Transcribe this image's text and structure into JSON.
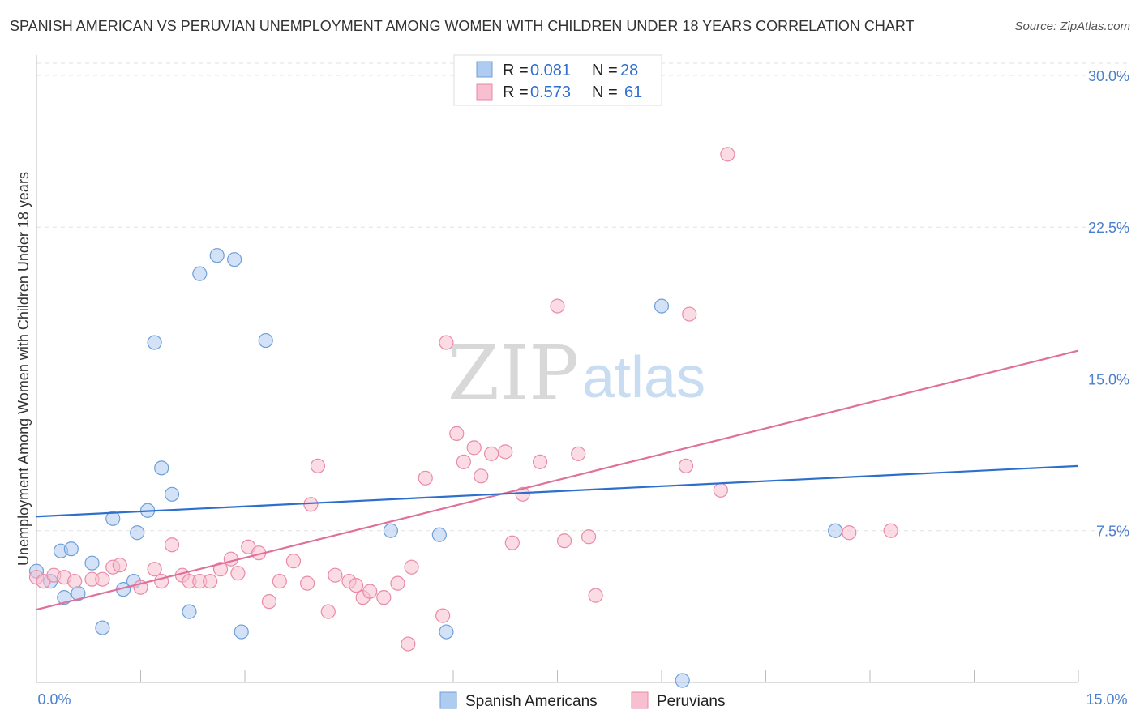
{
  "header": {
    "title": "SPANISH AMERICAN VS PERUVIAN UNEMPLOYMENT AMONG WOMEN WITH CHILDREN UNDER 18 YEARS CORRELATION CHART",
    "source": "Source: ZipAtlas.com"
  },
  "watermark": {
    "zip": "ZIP",
    "atlas": "atlas"
  },
  "legend": {
    "r_label": "R =",
    "n_label": "N =",
    "rows": [
      {
        "r": "0.081",
        "n": "28"
      },
      {
        "r": "0.573",
        "n": "61"
      }
    ]
  },
  "colors": {
    "blue_fill": "#aecbf0",
    "blue_stroke": "#6f9fd8",
    "blue_line": "#2d6fcc",
    "pink_fill": "#f7bfcf",
    "pink_stroke": "#e98aa8",
    "pink_line": "#e0709a"
  },
  "chart_data": {
    "type": "scatter",
    "title": "SPANISH AMERICAN VS PERUVIAN UNEMPLOYMENT AMONG WOMEN WITH CHILDREN UNDER 18 YEARS CORRELATION CHART",
    "xlabel": "",
    "ylabel": "Unemployment Among Women with Children Under 18 years",
    "xlim": [
      0,
      15
    ],
    "ylim": [
      0,
      31
    ],
    "x_tick_labels": [
      "0.0%",
      "15.0%"
    ],
    "y_ticks": [
      7.5,
      15.0,
      22.5,
      30.0
    ],
    "y_tick_labels": [
      "7.5%",
      "15.0%",
      "22.5%",
      "30.0%"
    ],
    "grid": "horizontal dashed",
    "series": [
      {
        "name": "Spanish Americans",
        "r": 0.081,
        "n": 28,
        "trend": {
          "x": [
            0,
            15
          ],
          "y": [
            8.2,
            10.7
          ]
        },
        "points": [
          [
            0.0,
            5.5
          ],
          [
            0.2,
            5.0
          ],
          [
            0.35,
            6.5
          ],
          [
            0.4,
            4.2
          ],
          [
            0.5,
            6.6
          ],
          [
            0.6,
            4.4
          ],
          [
            0.8,
            5.9
          ],
          [
            0.95,
            2.7
          ],
          [
            1.1,
            8.1
          ],
          [
            1.25,
            4.6
          ],
          [
            1.4,
            5.0
          ],
          [
            1.45,
            7.4
          ],
          [
            1.6,
            8.5
          ],
          [
            1.7,
            16.8
          ],
          [
            1.8,
            10.6
          ],
          [
            1.95,
            9.3
          ],
          [
            2.2,
            3.5
          ],
          [
            2.35,
            20.2
          ],
          [
            2.6,
            21.1
          ],
          [
            2.85,
            20.9
          ],
          [
            2.95,
            2.5
          ],
          [
            3.3,
            16.9
          ],
          [
            5.1,
            7.5
          ],
          [
            5.8,
            7.3
          ],
          [
            5.9,
            2.5
          ],
          [
            9.0,
            18.6
          ],
          [
            9.3,
            0.1
          ],
          [
            11.5,
            7.5
          ]
        ]
      },
      {
        "name": "Peruvians",
        "r": 0.573,
        "n": 61,
        "trend": {
          "x": [
            0,
            15
          ],
          "y": [
            3.6,
            16.4
          ]
        },
        "points": [
          [
            0.0,
            5.2
          ],
          [
            0.1,
            5.0
          ],
          [
            0.25,
            5.3
          ],
          [
            0.4,
            5.2
          ],
          [
            0.55,
            5.0
          ],
          [
            0.8,
            5.1
          ],
          [
            0.95,
            5.1
          ],
          [
            1.1,
            5.7
          ],
          [
            1.2,
            5.8
          ],
          [
            1.5,
            4.7
          ],
          [
            1.7,
            5.6
          ],
          [
            1.8,
            5.0
          ],
          [
            1.95,
            6.8
          ],
          [
            2.1,
            5.3
          ],
          [
            2.2,
            5.0
          ],
          [
            2.35,
            5.0
          ],
          [
            2.5,
            5.0
          ],
          [
            2.65,
            5.6
          ],
          [
            2.8,
            6.1
          ],
          [
            2.9,
            5.4
          ],
          [
            3.05,
            6.7
          ],
          [
            3.2,
            6.4
          ],
          [
            3.35,
            4.0
          ],
          [
            3.5,
            5.0
          ],
          [
            3.7,
            6.0
          ],
          [
            3.9,
            4.9
          ],
          [
            3.95,
            8.8
          ],
          [
            4.05,
            10.7
          ],
          [
            4.2,
            3.5
          ],
          [
            4.3,
            5.3
          ],
          [
            4.5,
            5.0
          ],
          [
            4.6,
            4.8
          ],
          [
            4.7,
            4.2
          ],
          [
            4.8,
            4.5
          ],
          [
            5.0,
            4.2
          ],
          [
            5.2,
            4.9
          ],
          [
            5.35,
            1.9
          ],
          [
            5.4,
            5.7
          ],
          [
            5.6,
            10.1
          ],
          [
            5.85,
            3.3
          ],
          [
            5.9,
            16.8
          ],
          [
            6.05,
            12.3
          ],
          [
            6.15,
            10.9
          ],
          [
            6.3,
            11.6
          ],
          [
            6.4,
            10.2
          ],
          [
            6.55,
            11.3
          ],
          [
            6.75,
            11.4
          ],
          [
            6.85,
            6.9
          ],
          [
            7.0,
            9.3
          ],
          [
            7.25,
            10.9
          ],
          [
            7.5,
            18.6
          ],
          [
            7.6,
            7.0
          ],
          [
            7.8,
            11.3
          ],
          [
            7.95,
            7.2
          ],
          [
            8.05,
            4.3
          ],
          [
            9.35,
            10.7
          ],
          [
            9.4,
            18.2
          ],
          [
            9.85,
            9.5
          ],
          [
            9.95,
            26.1
          ],
          [
            11.7,
            7.4
          ],
          [
            12.3,
            7.5
          ]
        ]
      }
    ]
  },
  "bottom_legend": [
    "Spanish Americans",
    "Peruvians"
  ]
}
